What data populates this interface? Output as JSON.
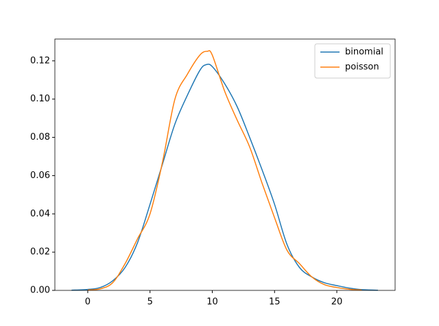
{
  "chart_data": {
    "type": "line",
    "series": [
      {
        "name": "binomial",
        "color": "#1f77b4",
        "x": [
          -1.3,
          0,
          1,
          2,
          3,
          4,
          5,
          6,
          7,
          8,
          9,
          9.5,
          10,
          11,
          12,
          13,
          14,
          15,
          16,
          17,
          18,
          19,
          20,
          21,
          22,
          23.3
        ],
        "values": [
          0.0001,
          0.0005,
          0.0015,
          0.005,
          0.012,
          0.025,
          0.045,
          0.066,
          0.087,
          0.102,
          0.115,
          0.118,
          0.117,
          0.108,
          0.096,
          0.08,
          0.063,
          0.045,
          0.024,
          0.012,
          0.007,
          0.004,
          0.0025,
          0.0012,
          0.0004,
          0.0001
        ]
      },
      {
        "name": "poisson",
        "color": "#ff7f0e",
        "x": [
          0,
          1,
          2,
          3,
          4,
          5,
          6,
          7,
          8,
          9,
          9.6,
          10,
          11,
          12,
          13,
          14,
          15,
          16,
          17,
          18,
          19,
          20,
          21,
          22
        ],
        "values": [
          0.0002,
          0.0008,
          0.004,
          0.014,
          0.027,
          0.04,
          0.067,
          0.1,
          0.113,
          0.123,
          0.125,
          0.123,
          0.104,
          0.089,
          0.075,
          0.056,
          0.038,
          0.021,
          0.014,
          0.007,
          0.003,
          0.0015,
          0.0006,
          0.0002
        ]
      }
    ],
    "xlim": [
      -2.64,
      24.68
    ],
    "ylim": [
      0,
      0.1314
    ],
    "xticks": [
      0,
      5,
      10,
      15,
      20
    ],
    "yticks": [
      {
        "value": 0,
        "label": "0.00"
      },
      0.02,
      0.04,
      0.06,
      0.08,
      {
        "value": 0.1,
        "label": "0.10"
      },
      0.12
    ],
    "legend": "upper right"
  }
}
